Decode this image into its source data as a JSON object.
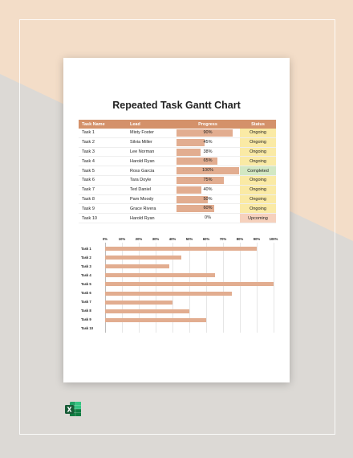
{
  "document": {
    "title": "Repeated Task Gantt Chart",
    "columns": {
      "task": "Task Name",
      "lead": "Lead",
      "progress": "Progress",
      "status": "Status"
    },
    "rows": [
      {
        "task": "Task 1",
        "lead": "Misty Foster",
        "progress": 90,
        "progress_label": "90%",
        "status": "Ongoing"
      },
      {
        "task": "Task 2",
        "lead": "Silvia Miller",
        "progress": 45,
        "progress_label": "45%",
        "status": "Ongoing"
      },
      {
        "task": "Task 3",
        "lead": "Lee Norman",
        "progress": 38,
        "progress_label": "38%",
        "status": "Ongoing"
      },
      {
        "task": "Task 4",
        "lead": "Harold Ryan",
        "progress": 65,
        "progress_label": "65%",
        "status": "Ongoing"
      },
      {
        "task": "Task 5",
        "lead": "Ross Garcia",
        "progress": 100,
        "progress_label": "100%",
        "status": "Completed"
      },
      {
        "task": "Task 6",
        "lead": "Tara Doyle",
        "progress": 75,
        "progress_label": "75%",
        "status": "Ongoing"
      },
      {
        "task": "Task 7",
        "lead": "Ted Daniel",
        "progress": 40,
        "progress_label": "40%",
        "status": "Ongoing"
      },
      {
        "task": "Task 8",
        "lead": "Pam Moody",
        "progress": 50,
        "progress_label": "50%",
        "status": "Ongoing"
      },
      {
        "task": "Task 9",
        "lead": "Grace Rivera",
        "progress": 60,
        "progress_label": "60%",
        "status": "Ongoing"
      },
      {
        "task": "Task 10",
        "lead": "Harold Ryan",
        "progress": 0,
        "progress_label": "0%",
        "status": "Upcoming"
      }
    ]
  },
  "chart_data": {
    "type": "bar",
    "orientation": "horizontal",
    "categories": [
      "Task 1",
      "Task 2",
      "Task 3",
      "Task 4",
      "Task 5",
      "Task 6",
      "Task 7",
      "Task 8",
      "Task 9",
      "Task 10"
    ],
    "values": [
      90,
      45,
      38,
      65,
      100,
      75,
      40,
      50,
      60,
      0
    ],
    "x_ticks": [
      "0%",
      "10%",
      "20%",
      "30%",
      "40%",
      "50%",
      "60%",
      "70%",
      "80%",
      "90%",
      "100%"
    ],
    "xlim": [
      0,
      100
    ],
    "grid": true,
    "bar_color": "#e2ad90"
  },
  "colors": {
    "header": "#d4916a",
    "bar": "#e2ad90",
    "ongoing": "#faeaa5",
    "completed": "#d3e8c3",
    "upcoming": "#f6d1bd"
  },
  "icons": {
    "file_type": "excel-icon"
  }
}
